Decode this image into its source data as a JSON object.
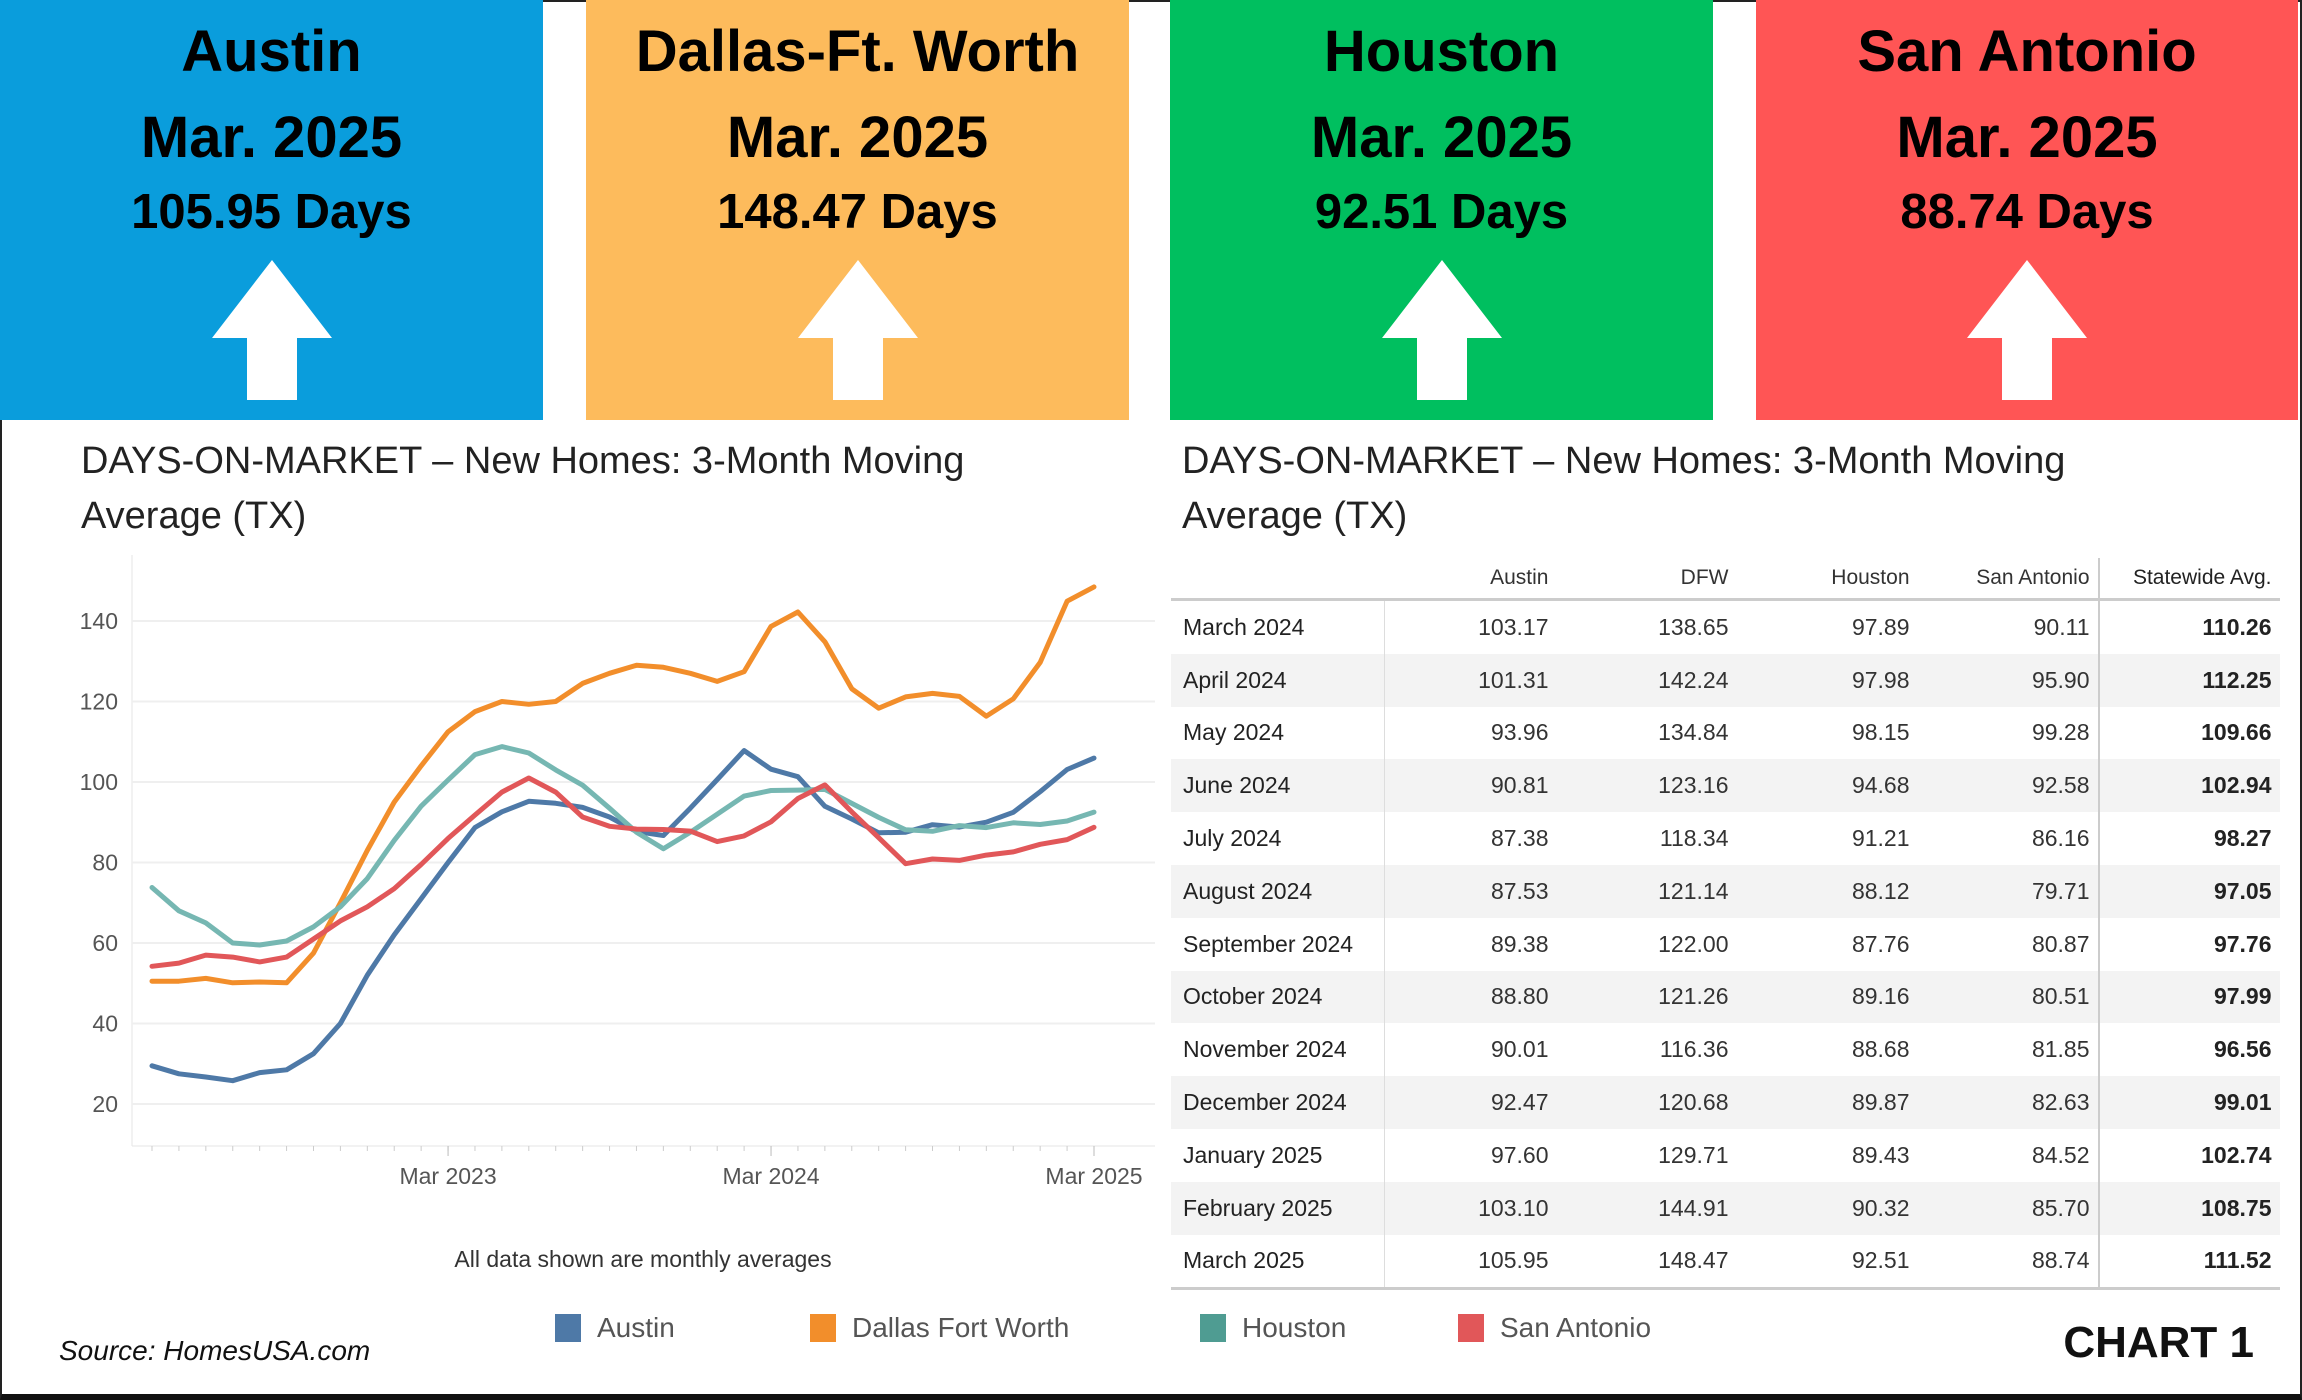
{
  "cards": [
    {
      "city": "Austin",
      "date": "Mar. 2025",
      "days": "105.95 Days",
      "color": "#0a9ddc",
      "trend": "up"
    },
    {
      "city": "Dallas-Ft. Worth",
      "date": "Mar. 2025",
      "days": "148.47 Days",
      "color": "#fdbb5c",
      "trend": "up"
    },
    {
      "city": "Houston",
      "date": "Mar. 2025",
      "days": "92.51 Days",
      "color": "#00bf5f",
      "trend": "up"
    },
    {
      "city": "San Antonio",
      "date": "Mar. 2025",
      "days": "88.74 Days",
      "color": "#ff5555",
      "trend": "up"
    }
  ],
  "left_title": [
    "DAYS-ON-MARKET – New Homes: 3-Month Moving",
    "Average (TX)"
  ],
  "right_title": [
    "DAYS-ON-MARKET – New Homes:  3-Month Moving",
    "Average (TX)"
  ],
  "chart_data": {
    "type": "line",
    "x": [
      "Apr 2022",
      "May 2022",
      "Jun 2022",
      "Jul 2022",
      "Aug 2022",
      "Sep 2022",
      "Oct 2022",
      "Nov 2022",
      "Dec 2022",
      "Jan 2023",
      "Feb 2023",
      "Mar 2023",
      "Apr 2023",
      "May 2023",
      "Jun 2023",
      "Jul 2023",
      "Aug 2023",
      "Sep 2023",
      "Oct 2023",
      "Nov 2023",
      "Dec 2023",
      "Jan 2024",
      "Feb 2024",
      "Mar 2024",
      "Apr 2024",
      "May 2024",
      "Jun 2024",
      "Jul 2024",
      "Aug 2024",
      "Sep 2024",
      "Oct 2024",
      "Nov 2024",
      "Dec 2024",
      "Jan 2025",
      "Feb 2025",
      "Mar 2025"
    ],
    "xticks": [
      "Mar 2023",
      "Mar 2024",
      "Mar 2025"
    ],
    "yticks": [
      20,
      40,
      60,
      80,
      100,
      120,
      140
    ],
    "ylim": [
      10,
      152
    ],
    "grid": true,
    "legend_position": "bottom",
    "note": "All data shown are monthly averages",
    "series": [
      {
        "name": "Austin",
        "color": "#4e79a7",
        "values": [
          29.5,
          27.5,
          26.7,
          25.8,
          27.8,
          28.5,
          32.5,
          40,
          52,
          62,
          71,
          80,
          88.7,
          92.6,
          95.2,
          94.7,
          93.7,
          91.3,
          87.7,
          86.7,
          93.5,
          100.6,
          107.8,
          103.17,
          101.31,
          93.96,
          90.81,
          87.38,
          87.53,
          89.38,
          88.8,
          90.01,
          92.47,
          97.6,
          103.1,
          105.95
        ]
      },
      {
        "name": "Dallas Fort Worth",
        "color": "#f28e2b",
        "values": [
          50.5,
          50.5,
          51.2,
          50.1,
          50.3,
          50.1,
          57.5,
          70,
          83,
          95,
          104,
          112.5,
          117.5,
          120,
          119.3,
          120,
          124.5,
          127,
          129,
          128.5,
          127,
          125,
          127.4,
          138.65,
          142.24,
          134.84,
          123.16,
          118.34,
          121.14,
          122.0,
          121.26,
          116.36,
          120.68,
          129.71,
          144.91,
          148.47
        ]
      },
      {
        "name": "Houston",
        "color": "#76b7b2",
        "values": [
          73.8,
          68,
          65,
          60,
          59.5,
          60.5,
          64,
          69,
          76,
          85.5,
          94,
          100.5,
          106.8,
          108.8,
          107.2,
          103,
          99.2,
          93.5,
          87.5,
          83.4,
          87.5,
          92,
          96.5,
          97.89,
          97.98,
          98.15,
          94.68,
          91.21,
          88.12,
          87.76,
          89.16,
          88.68,
          89.87,
          89.43,
          90.32,
          92.51
        ]
      },
      {
        "name": "San Antonio",
        "color": "#e15759",
        "values": [
          54.2,
          55,
          57,
          56.5,
          55.3,
          56.5,
          61,
          65.5,
          69,
          73.5,
          79.5,
          86,
          91.8,
          97.5,
          101,
          97.5,
          91.3,
          89,
          88.3,
          88.2,
          87.8,
          85.2,
          86.6,
          90.11,
          95.9,
          99.28,
          92.58,
          86.16,
          79.71,
          80.87,
          80.51,
          81.85,
          82.63,
          84.52,
          85.7,
          88.74
        ]
      }
    ]
  },
  "table": {
    "headers": [
      "",
      "Austin",
      "DFW",
      "Houston",
      "San Antonio",
      "Statewide Avg."
    ],
    "rows": [
      [
        "March 2024",
        "103.17",
        "138.65",
        "97.89",
        "90.11",
        "110.26"
      ],
      [
        "April 2024",
        "101.31",
        "142.24",
        "97.98",
        "95.90",
        "112.25"
      ],
      [
        "May 2024",
        "93.96",
        "134.84",
        "98.15",
        "99.28",
        "109.66"
      ],
      [
        "June 2024",
        "90.81",
        "123.16",
        "94.68",
        "92.58",
        "102.94"
      ],
      [
        "July 2024",
        "87.38",
        "118.34",
        "91.21",
        "86.16",
        "98.27"
      ],
      [
        "August 2024",
        "87.53",
        "121.14",
        "88.12",
        "79.71",
        "97.05"
      ],
      [
        "September 2024",
        "89.38",
        "122.00",
        "87.76",
        "80.87",
        "97.76"
      ],
      [
        "October 2024",
        "88.80",
        "121.26",
        "89.16",
        "80.51",
        "97.99"
      ],
      [
        "November 2024",
        "90.01",
        "116.36",
        "88.68",
        "81.85",
        "96.56"
      ],
      [
        "December 2024",
        "92.47",
        "120.68",
        "89.87",
        "82.63",
        "99.01"
      ],
      [
        "January 2025",
        "97.60",
        "129.71",
        "89.43",
        "84.52",
        "102.74"
      ],
      [
        "February 2025",
        "103.10",
        "144.91",
        "90.32",
        "85.70",
        "108.75"
      ],
      [
        "March 2025",
        "105.95",
        "148.47",
        "92.51",
        "88.74",
        "111.52"
      ]
    ]
  },
  "source": "Source: HomesUSA.com",
  "chart_label": "CHART 1"
}
